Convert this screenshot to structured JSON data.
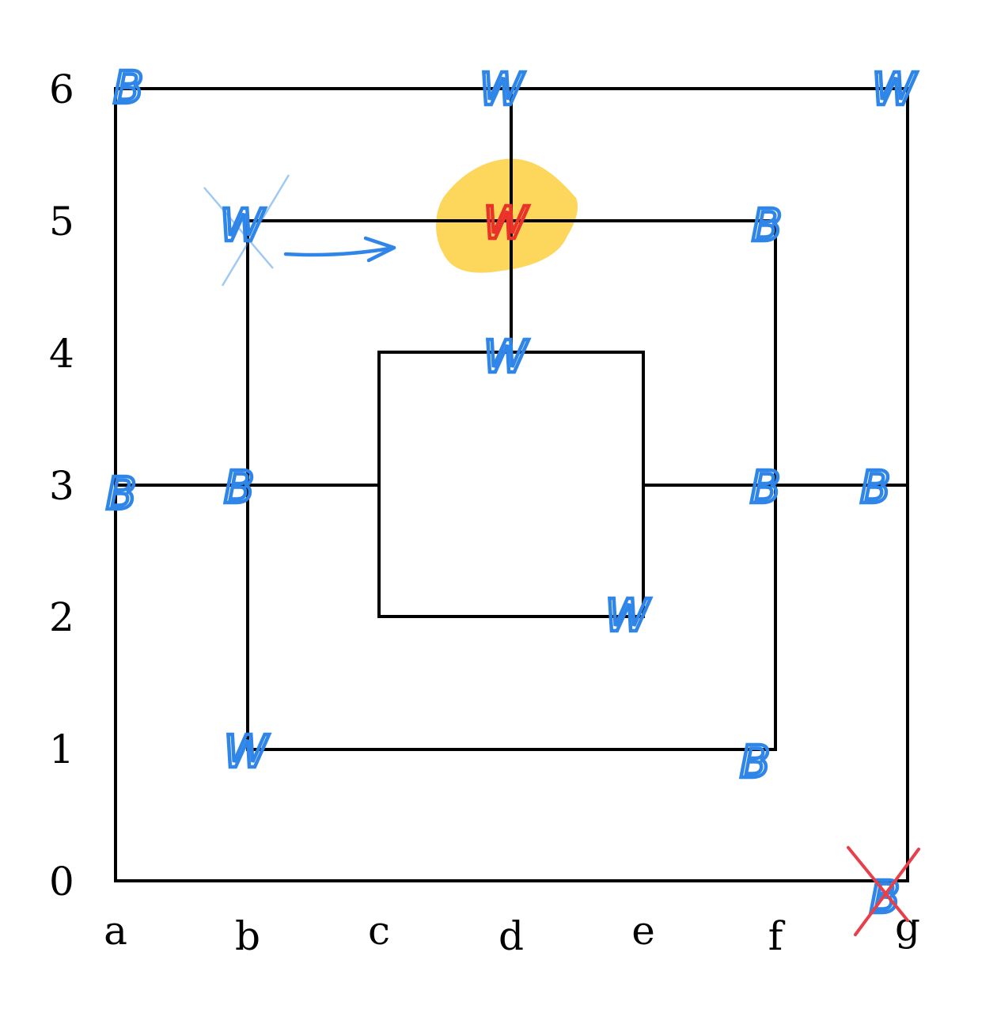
{
  "board": {
    "columns": [
      "a",
      "b",
      "c",
      "d",
      "e",
      "f",
      "g"
    ],
    "rows": [
      "0",
      "1",
      "2",
      "3",
      "4",
      "5",
      "6"
    ]
  },
  "colors": {
    "ink": "#000000",
    "piece": "#2f86e8",
    "highlight_piece": "#e8322a",
    "highlight": "#fdd34a",
    "strike": "#e8404a"
  },
  "pieces": [
    {
      "point": "a6",
      "label": "B",
      "state": "normal"
    },
    {
      "point": "d6",
      "label": "W",
      "state": "normal"
    },
    {
      "point": "g6",
      "label": "W",
      "state": "normal"
    },
    {
      "point": "b5",
      "label": "W",
      "state": "removed"
    },
    {
      "point": "d5",
      "label": "W",
      "state": "highlighted"
    },
    {
      "point": "f5",
      "label": "B",
      "state": "normal"
    },
    {
      "point": "d4",
      "label": "W",
      "state": "normal"
    },
    {
      "point": "a3",
      "label": "B",
      "state": "normal"
    },
    {
      "point": "b3",
      "label": "B",
      "state": "normal"
    },
    {
      "point": "f3",
      "label": "B",
      "state": "normal"
    },
    {
      "point": "g3",
      "label": "B",
      "state": "normal"
    },
    {
      "point": "e2",
      "label": "W",
      "state": "normal"
    },
    {
      "point": "b1",
      "label": "W",
      "state": "normal"
    },
    {
      "point": "f1",
      "label": "B",
      "state": "normal"
    },
    {
      "point": "g0",
      "label": "B",
      "state": "crossed-out"
    }
  ],
  "moves": [
    {
      "from": "b5",
      "to": "d5"
    }
  ]
}
